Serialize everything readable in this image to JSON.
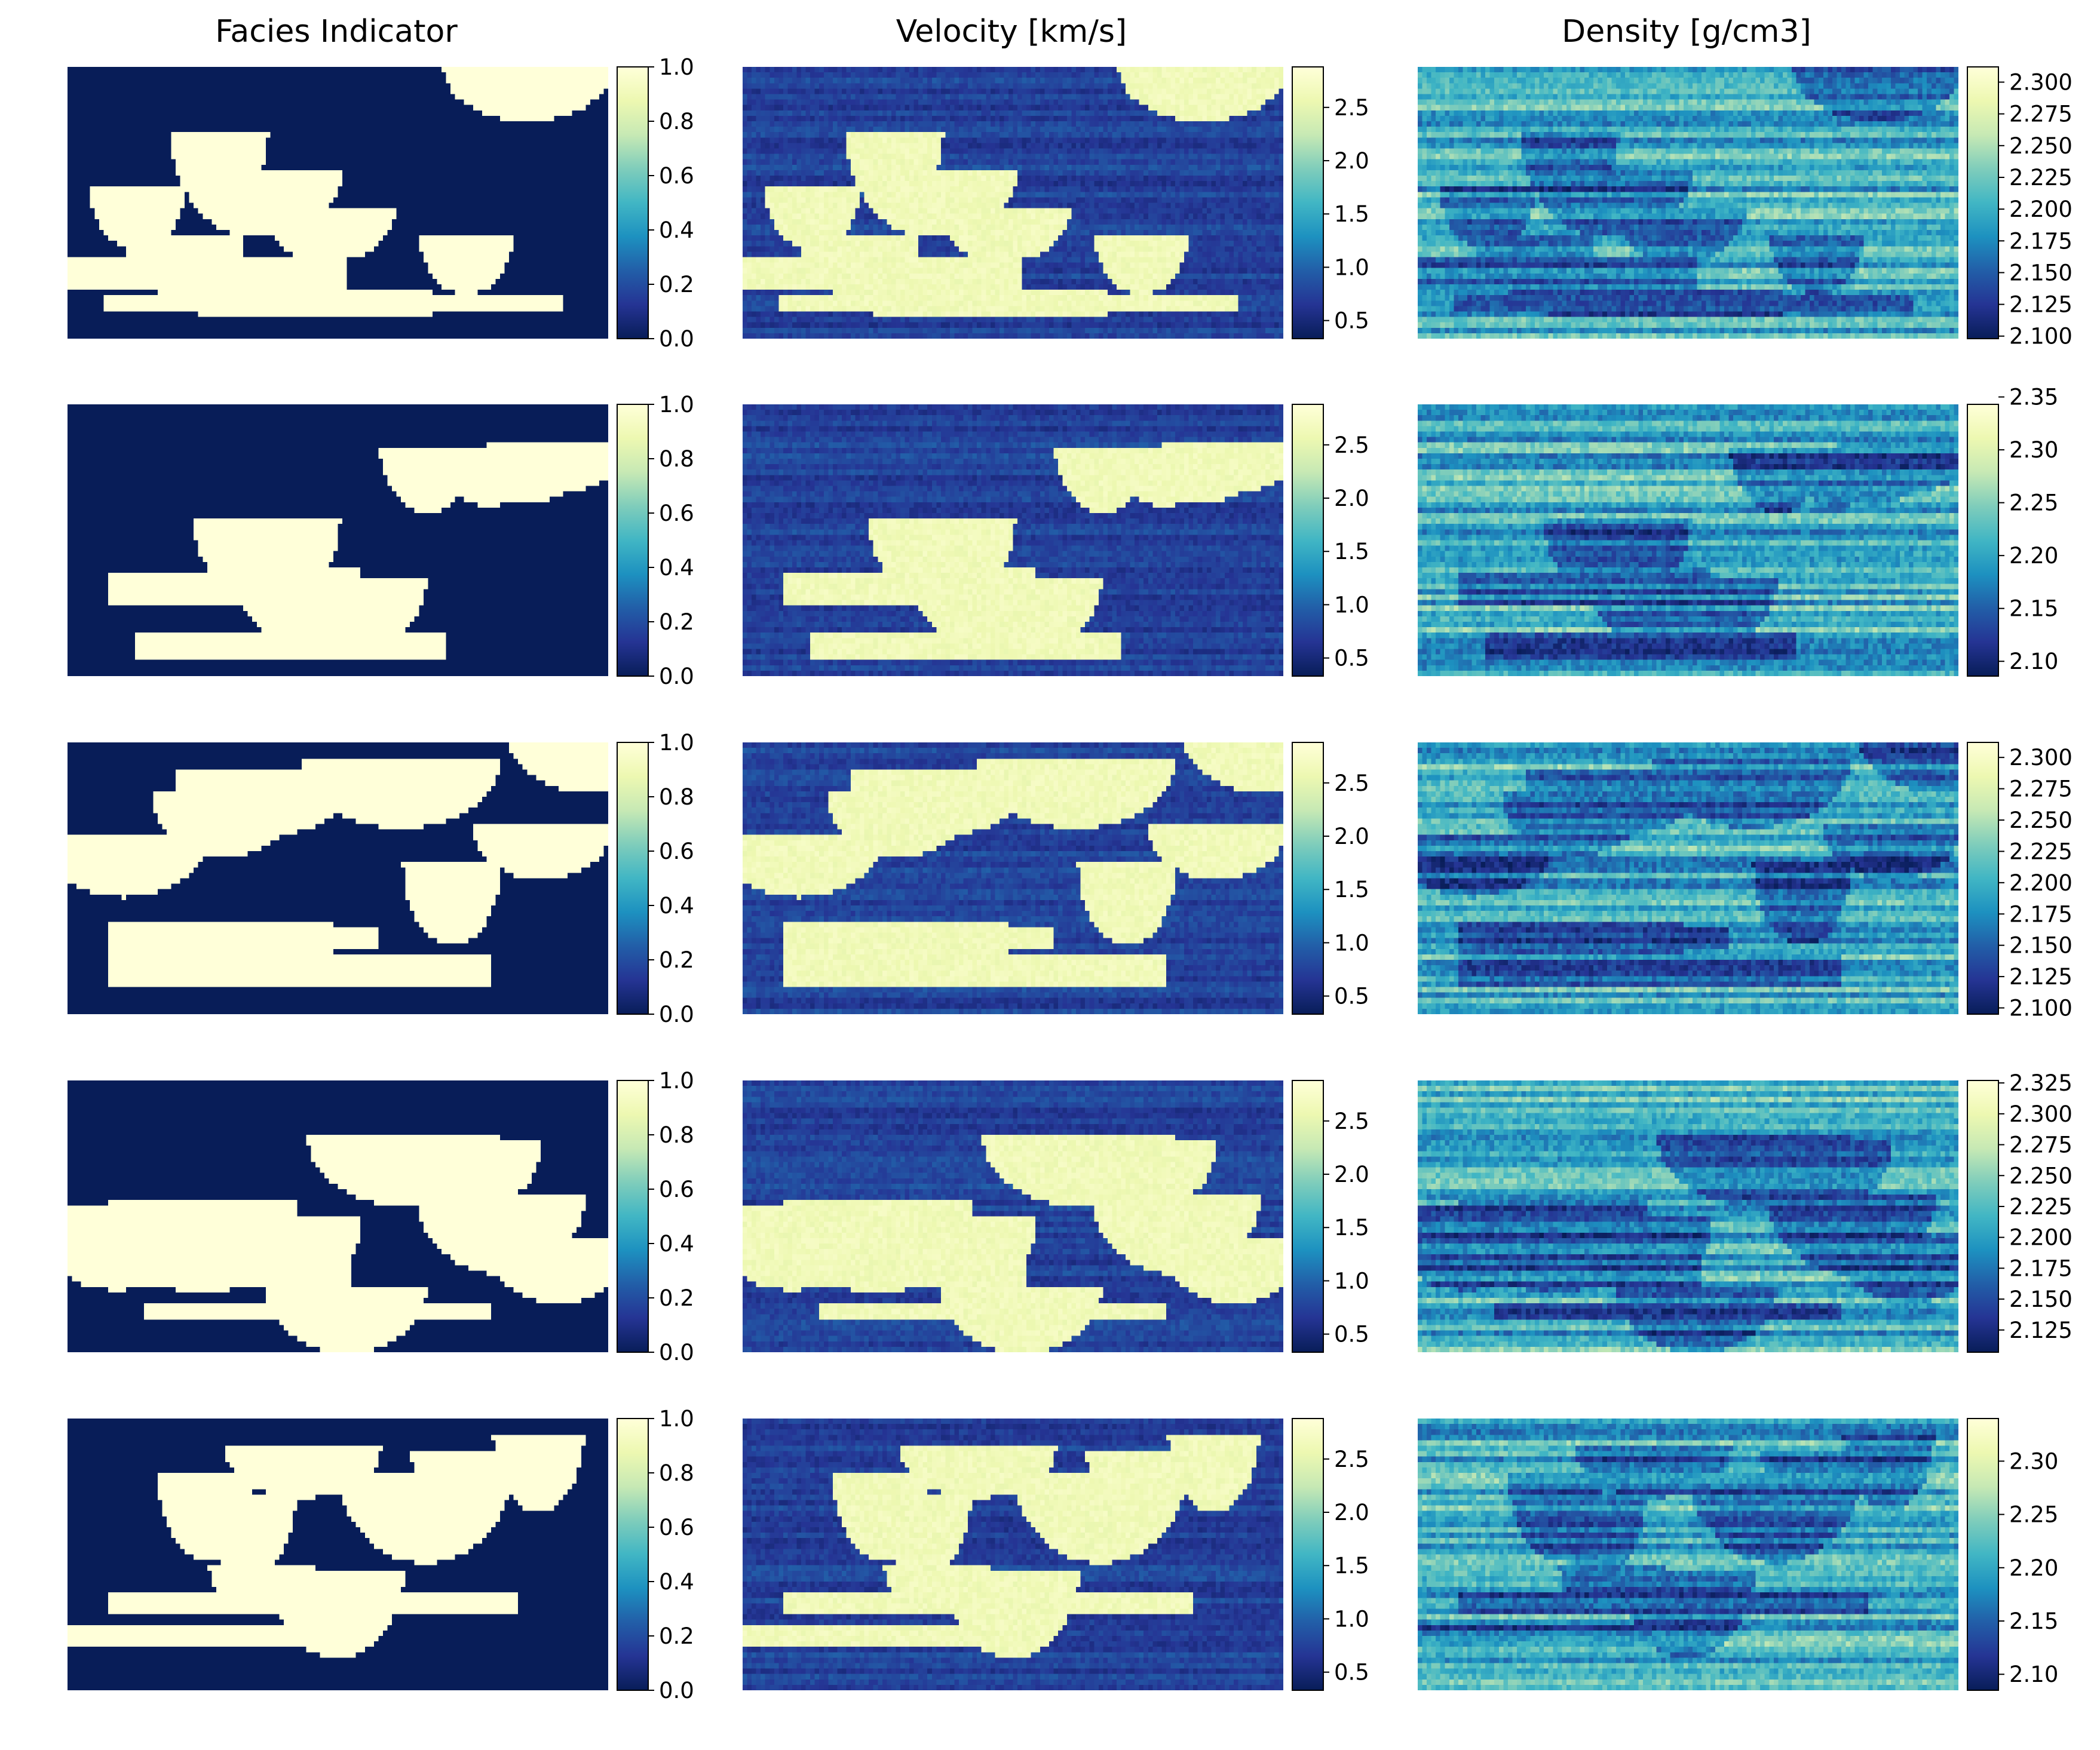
{
  "colormap": {
    "name": "YlGnBu",
    "stops": [
      "#081d58",
      "#253494",
      "#225ea8",
      "#1d91c0",
      "#41b6c4",
      "#7fcdbb",
      "#c7e9b4",
      "#edf8b1",
      "#ffffd9"
    ]
  },
  "chart_data": [
    {
      "type": "heatmap",
      "title": "Facies Indicator",
      "row": 1,
      "column": 1,
      "vmin": 0.0,
      "vmax": 1.0,
      "colorbar_ticks": [
        "0.0",
        "0.2",
        "0.4",
        "0.6",
        "0.8",
        "1.0"
      ],
      "tick_values": [
        0.0,
        0.2,
        0.4,
        0.6,
        0.8,
        1.0
      ],
      "seed": 11
    },
    {
      "type": "heatmap",
      "title": "Velocity [km/s]",
      "row": 1,
      "column": 2,
      "vmin": 0.33,
      "vmax": 2.88,
      "colorbar_ticks": [
        "0.5",
        "1.0",
        "1.5",
        "2.0",
        "2.5"
      ],
      "tick_values": [
        0.5,
        1.0,
        1.5,
        2.0,
        2.5
      ],
      "seed": 11
    },
    {
      "type": "heatmap",
      "title": "Density [g/cm3]",
      "row": 1,
      "column": 3,
      "vmin": 2.098,
      "vmax": 2.312,
      "colorbar_ticks": [
        "2.100",
        "2.125",
        "2.150",
        "2.175",
        "2.200",
        "2.225",
        "2.250",
        "2.275",
        "2.300"
      ],
      "tick_values": [
        2.1,
        2.125,
        2.15,
        2.175,
        2.2,
        2.225,
        2.25,
        2.275,
        2.3
      ],
      "seed": 11
    },
    {
      "type": "heatmap",
      "title": "",
      "row": 2,
      "column": 1,
      "vmin": 0.0,
      "vmax": 1.0,
      "colorbar_ticks": [
        "0.0",
        "0.2",
        "0.4",
        "0.6",
        "0.8",
        "1.0"
      ],
      "tick_values": [
        0.0,
        0.2,
        0.4,
        0.6,
        0.8,
        1.0
      ],
      "seed": 23
    },
    {
      "type": "heatmap",
      "title": "",
      "row": 2,
      "column": 2,
      "vmin": 0.33,
      "vmax": 2.88,
      "colorbar_ticks": [
        "0.5",
        "1.0",
        "1.5",
        "2.0",
        "2.5"
      ],
      "tick_values": [
        0.5,
        1.0,
        1.5,
        2.0,
        2.5
      ],
      "seed": 23
    },
    {
      "type": "heatmap",
      "title": "",
      "row": 2,
      "column": 3,
      "vmin": 2.086,
      "vmax": 2.343,
      "colorbar_ticks": [
        "2.10",
        "2.15",
        "2.20",
        "2.25",
        "2.30",
        "2.35"
      ],
      "tick_values": [
        2.1,
        2.15,
        2.2,
        2.25,
        2.3,
        2.35
      ],
      "seed": 23
    },
    {
      "type": "heatmap",
      "title": "",
      "row": 3,
      "column": 1,
      "vmin": 0.0,
      "vmax": 1.0,
      "colorbar_ticks": [
        "0.0",
        "0.2",
        "0.4",
        "0.6",
        "0.8",
        "1.0"
      ],
      "tick_values": [
        0.0,
        0.2,
        0.4,
        0.6,
        0.8,
        1.0
      ],
      "seed": 37
    },
    {
      "type": "heatmap",
      "title": "",
      "row": 3,
      "column": 2,
      "vmin": 0.33,
      "vmax": 2.88,
      "colorbar_ticks": [
        "0.5",
        "1.0",
        "1.5",
        "2.0",
        "2.5"
      ],
      "tick_values": [
        0.5,
        1.0,
        1.5,
        2.0,
        2.5
      ],
      "seed": 37
    },
    {
      "type": "heatmap",
      "title": "",
      "row": 3,
      "column": 3,
      "vmin": 2.095,
      "vmax": 2.312,
      "colorbar_ticks": [
        "2.100",
        "2.125",
        "2.150",
        "2.175",
        "2.200",
        "2.225",
        "2.250",
        "2.275",
        "2.300"
      ],
      "tick_values": [
        2.1,
        2.125,
        2.15,
        2.175,
        2.2,
        2.225,
        2.25,
        2.275,
        2.3
      ],
      "seed": 37
    },
    {
      "type": "heatmap",
      "title": "",
      "row": 4,
      "column": 1,
      "vmin": 0.0,
      "vmax": 1.0,
      "colorbar_ticks": [
        "0.0",
        "0.2",
        "0.4",
        "0.6",
        "0.8",
        "1.0"
      ],
      "tick_values": [
        0.0,
        0.2,
        0.4,
        0.6,
        0.8,
        1.0
      ],
      "seed": 51
    },
    {
      "type": "heatmap",
      "title": "",
      "row": 4,
      "column": 2,
      "vmin": 0.33,
      "vmax": 2.88,
      "colorbar_ticks": [
        "0.5",
        "1.0",
        "1.5",
        "2.0",
        "2.5"
      ],
      "tick_values": [
        0.5,
        1.0,
        1.5,
        2.0,
        2.5
      ],
      "seed": 51
    },
    {
      "type": "heatmap",
      "title": "",
      "row": 4,
      "column": 3,
      "vmin": 2.107,
      "vmax": 2.327,
      "colorbar_ticks": [
        "2.125",
        "2.150",
        "2.175",
        "2.200",
        "2.225",
        "2.250",
        "2.275",
        "2.300",
        "2.325"
      ],
      "tick_values": [
        2.125,
        2.15,
        2.175,
        2.2,
        2.225,
        2.25,
        2.275,
        2.3,
        2.325
      ],
      "seed": 51
    },
    {
      "type": "heatmap",
      "title": "",
      "row": 5,
      "column": 1,
      "vmin": 0.0,
      "vmax": 1.0,
      "colorbar_ticks": [
        "0.0",
        "0.2",
        "0.4",
        "0.6",
        "0.8",
        "1.0"
      ],
      "tick_values": [
        0.0,
        0.2,
        0.4,
        0.6,
        0.8,
        1.0
      ],
      "seed": 67
    },
    {
      "type": "heatmap",
      "title": "",
      "row": 5,
      "column": 2,
      "vmin": 0.33,
      "vmax": 2.88,
      "colorbar_ticks": [
        "0.5",
        "1.0",
        "1.5",
        "2.0",
        "2.5"
      ],
      "tick_values": [
        0.5,
        1.0,
        1.5,
        2.0,
        2.5
      ],
      "seed": 67
    },
    {
      "type": "heatmap",
      "title": "",
      "row": 5,
      "column": 3,
      "vmin": 2.085,
      "vmax": 2.34,
      "colorbar_ticks": [
        "2.10",
        "2.15",
        "2.20",
        "2.25",
        "2.30"
      ],
      "tick_values": [
        2.1,
        2.15,
        2.2,
        2.25,
        2.3
      ],
      "seed": 67
    }
  ]
}
